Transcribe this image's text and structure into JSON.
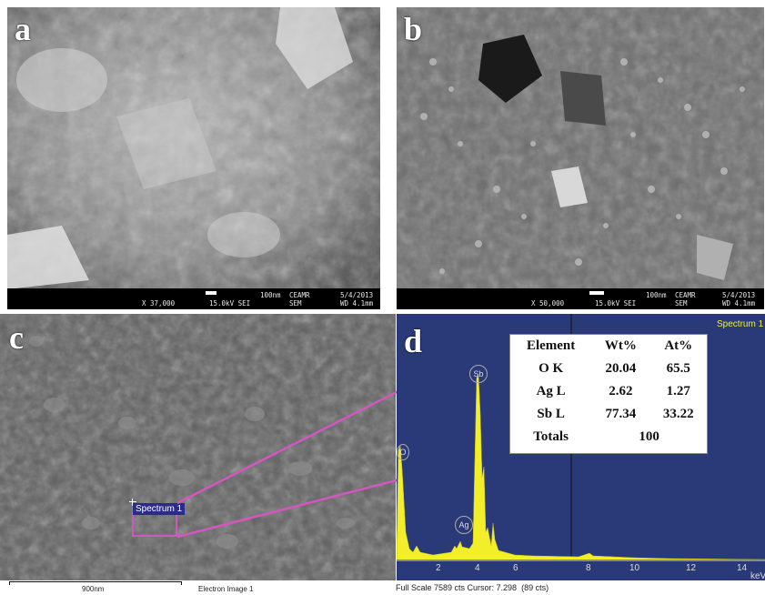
{
  "panels": {
    "a": {
      "letter": "a",
      "scale": "100nm",
      "org": "CEAMR",
      "date": "5/4/2013",
      "mag": "X 37,000",
      "kv": "15.0kV SEI",
      "mode": "SEM",
      "wd": "WD 4.1mm"
    },
    "b": {
      "letter": "b",
      "scale": "100nm",
      "org": "CEAMR",
      "date": "5/4/2013",
      "mag": "X 50,000",
      "kv": "15.0kV SEI",
      "mode": "SEM",
      "wd": "WD 4.1mm"
    },
    "c": {
      "letter": "c",
      "spectrum_label": "Spectrum 1",
      "scale": "900nm",
      "caption": "Electron Image 1"
    },
    "d": {
      "letter": "d",
      "spectrum_title": "Spectrum 1",
      "footer": "Full Scale 7589 cts Cursor: 7.298  (89 cts)",
      "axis_unit": "keV",
      "ticks": [
        "2",
        "4",
        "6",
        "8",
        "10",
        "12",
        "14"
      ],
      "peak_labels": [
        "O",
        "Sb",
        "Ag"
      ]
    }
  },
  "table": {
    "headers": [
      "Element",
      "Wt%",
      "At%"
    ],
    "rows": [
      [
        "O K",
        "20.04",
        "65.5"
      ],
      [
        "Ag L",
        "2.62",
        "1.27"
      ],
      [
        "Sb L",
        "77.34",
        "33.22"
      ]
    ],
    "totals_label": "Totals",
    "totals_value": "100"
  },
  "colors": {
    "spectrum_bg": "#2a3a78",
    "spectrum_fill": "#f2ee2a",
    "callout": "#d257c0",
    "spectrum_label_bg": "#2b2b8a"
  }
}
